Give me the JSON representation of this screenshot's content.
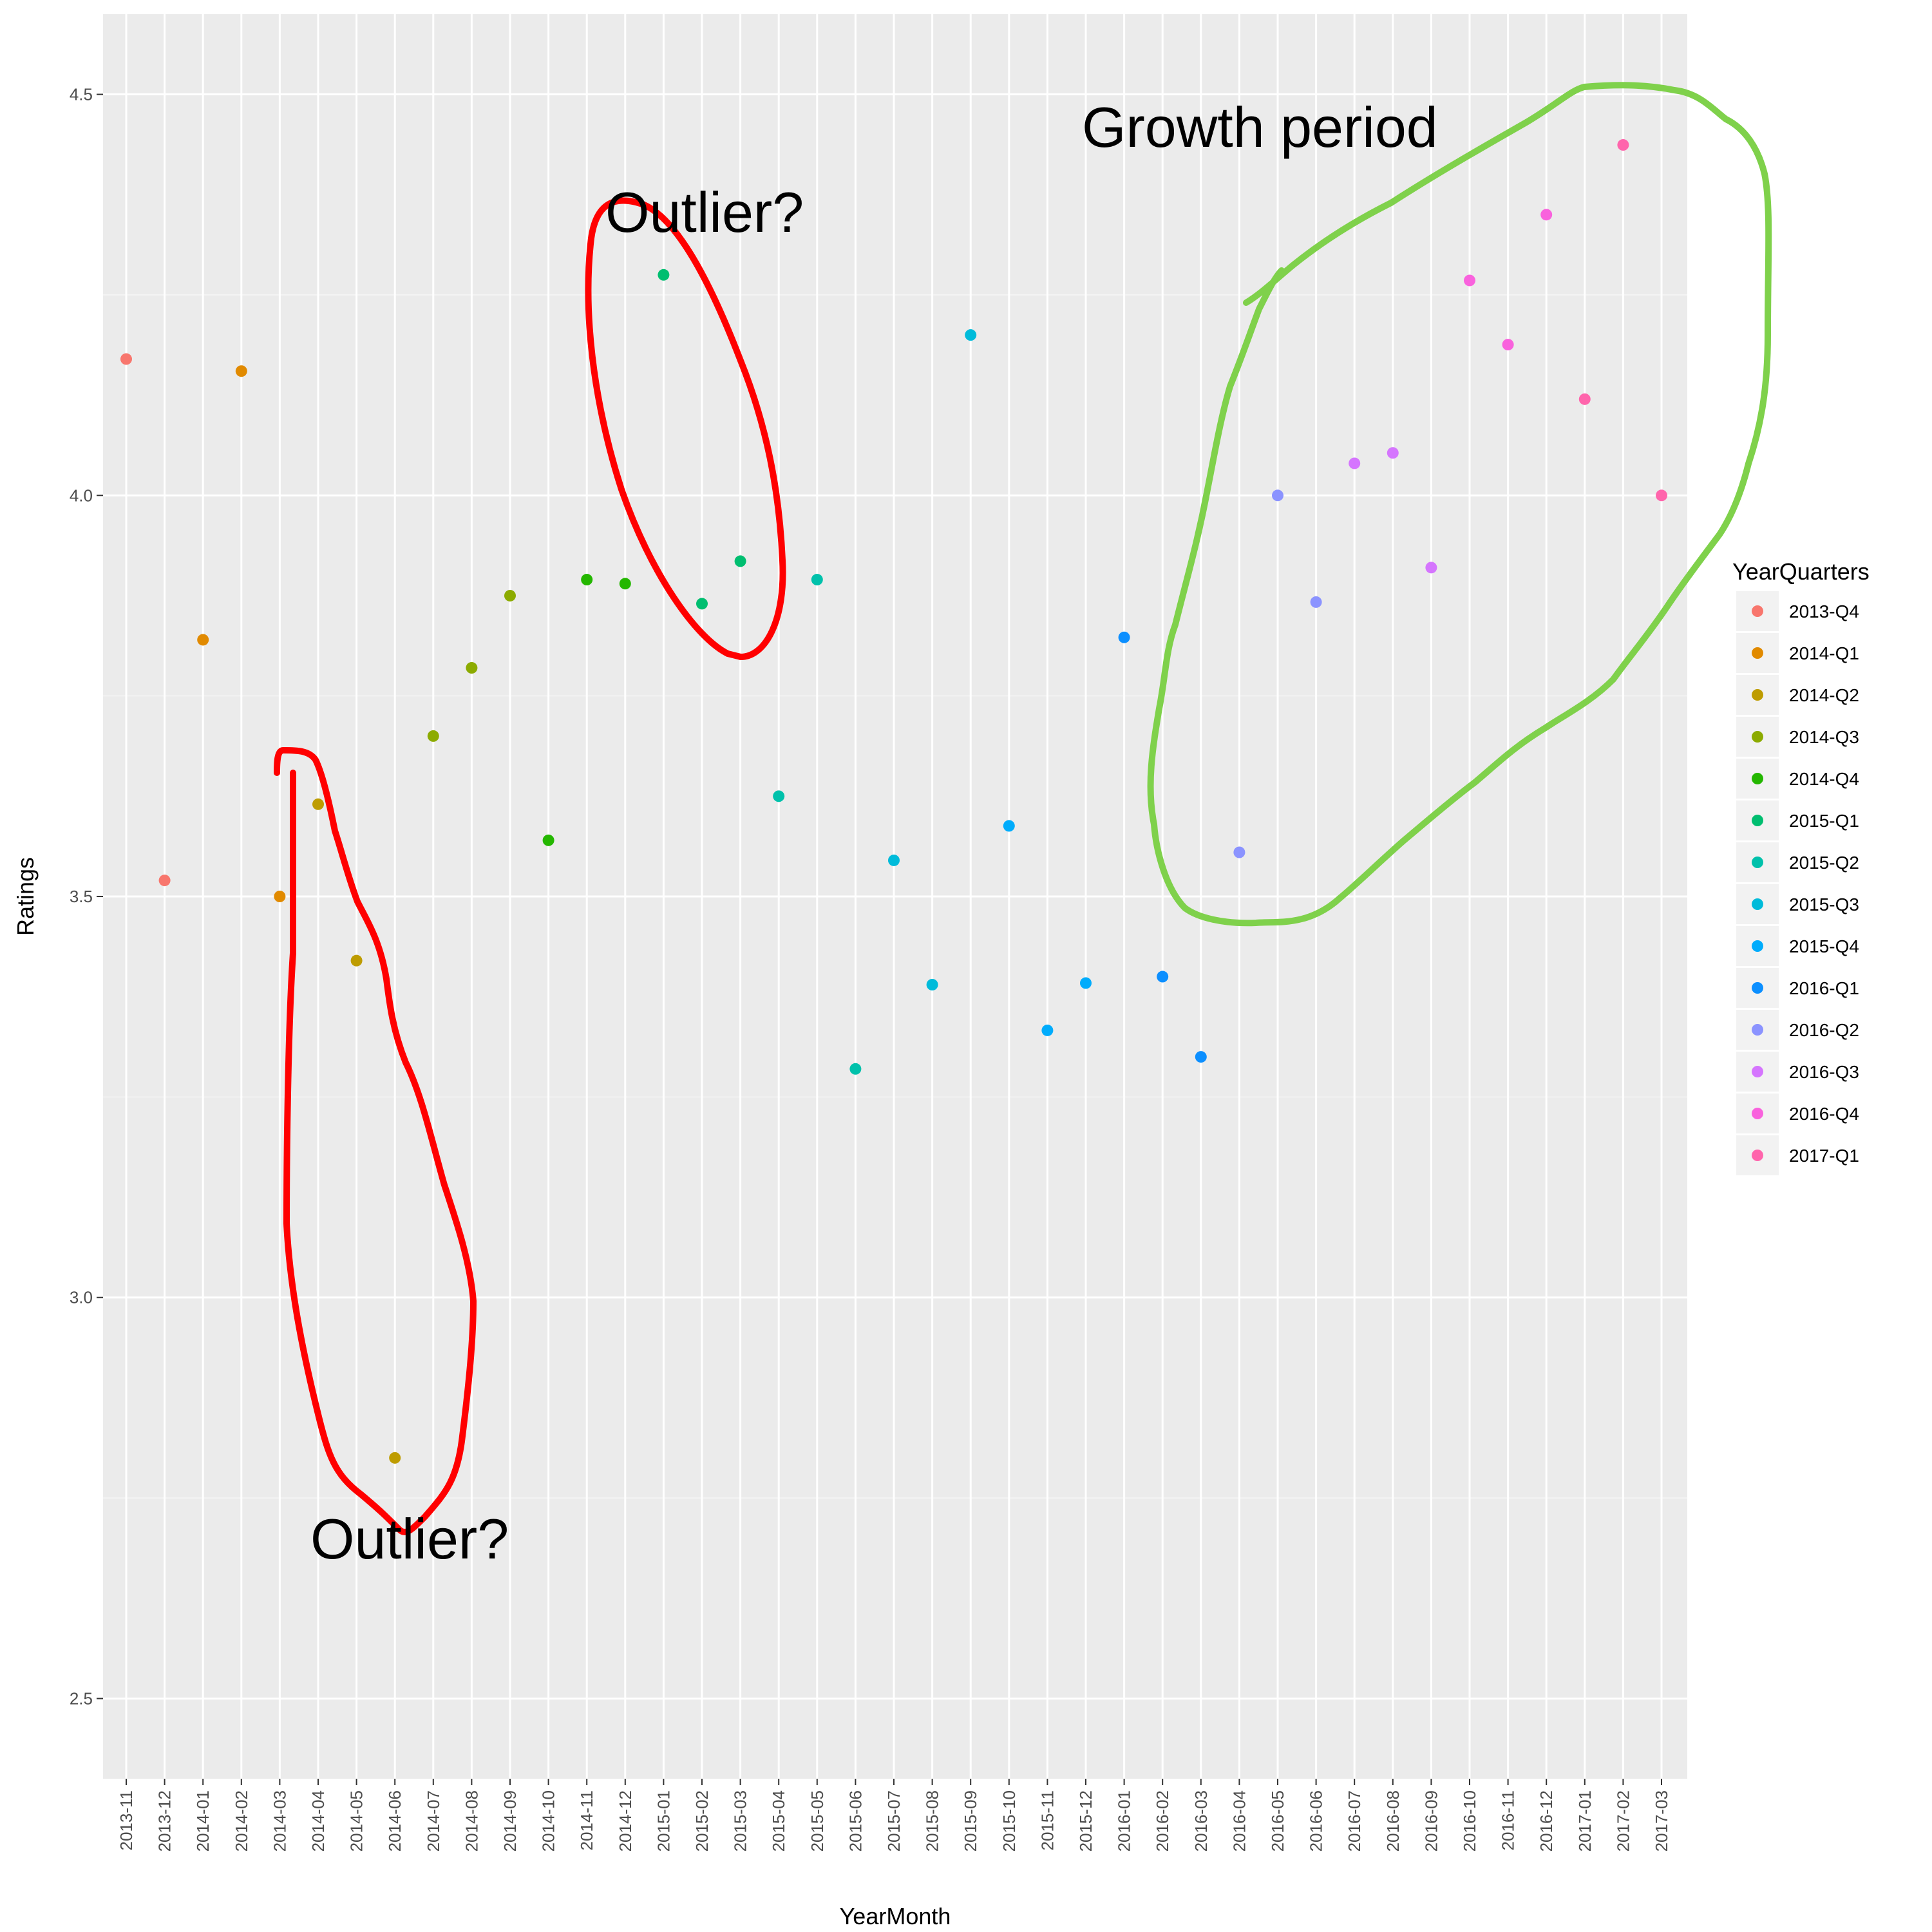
{
  "chart_data": {
    "type": "scatter",
    "xlabel": "YearMonth",
    "ylabel": "Ratings",
    "ylim": [
      2.4,
      4.6
    ],
    "yticks": [
      "2.5",
      "3.0",
      "3.5",
      "4.0",
      "4.5"
    ],
    "grid": true,
    "legend_title": "YearQuarters",
    "legend_position": "right",
    "categories": [
      "2013-11",
      "2013-12",
      "2014-01",
      "2014-02",
      "2014-03",
      "2014-04",
      "2014-05",
      "2014-06",
      "2014-07",
      "2014-08",
      "2014-09",
      "2014-10",
      "2014-11",
      "2014-12",
      "2015-01",
      "2015-02",
      "2015-03",
      "2015-04",
      "2015-05",
      "2015-06",
      "2015-07",
      "2015-08",
      "2015-09",
      "2015-10",
      "2015-11",
      "2015-12",
      "2016-01",
      "2016-02",
      "2016-03",
      "2016-04",
      "2016-05",
      "2016-06",
      "2016-07",
      "2016-08",
      "2016-09",
      "2016-10",
      "2016-11",
      "2016-12",
      "2017-01",
      "2017-02",
      "2017-03"
    ],
    "series": [
      {
        "name": "2013-Q4",
        "color": "#F8766D",
        "points": [
          {
            "x": "2013-11",
            "y": 4.17
          },
          {
            "x": "2013-12",
            "y": 3.52
          }
        ]
      },
      {
        "name": "2014-Q1",
        "color": "#E18A00",
        "points": [
          {
            "x": "2014-01",
            "y": 3.82
          },
          {
            "x": "2014-02",
            "y": 4.155
          },
          {
            "x": "2014-03",
            "y": 3.5
          }
        ]
      },
      {
        "name": "2014-Q2",
        "color": "#BE9C00",
        "points": [
          {
            "x": "2014-04",
            "y": 3.615
          },
          {
            "x": "2014-05",
            "y": 3.42
          },
          {
            "x": "2014-06",
            "y": 2.8
          }
        ]
      },
      {
        "name": "2014-Q3",
        "color": "#8CAB00",
        "points": [
          {
            "x": "2014-07",
            "y": 3.7
          },
          {
            "x": "2014-08",
            "y": 3.785
          },
          {
            "x": "2014-09",
            "y": 3.875
          }
        ]
      },
      {
        "name": "2014-Q4",
        "color": "#24B700",
        "points": [
          {
            "x": "2014-10",
            "y": 3.57
          },
          {
            "x": "2014-11",
            "y": 3.895
          },
          {
            "x": "2014-12",
            "y": 3.89
          }
        ]
      },
      {
        "name": "2015-Q1",
        "color": "#00BE70",
        "points": [
          {
            "x": "2015-01",
            "y": 4.275
          },
          {
            "x": "2015-02",
            "y": 3.865
          },
          {
            "x": "2015-03",
            "y": 3.918
          }
        ]
      },
      {
        "name": "2015-Q2",
        "color": "#00C1AB",
        "points": [
          {
            "x": "2015-04",
            "y": 3.625
          },
          {
            "x": "2015-05",
            "y": 3.895
          },
          {
            "x": "2015-06",
            "y": 3.285
          }
        ]
      },
      {
        "name": "2015-Q3",
        "color": "#00BBDA",
        "points": [
          {
            "x": "2015-07",
            "y": 3.545
          },
          {
            "x": "2015-08",
            "y": 3.39
          },
          {
            "x": "2015-09",
            "y": 4.2
          }
        ]
      },
      {
        "name": "2015-Q4",
        "color": "#00ACFC",
        "points": [
          {
            "x": "2015-10",
            "y": 3.588
          },
          {
            "x": "2015-11",
            "y": 3.333
          },
          {
            "x": "2015-12",
            "y": 3.392
          }
        ]
      },
      {
        "name": "2016-Q1",
        "color": "#0C8FFF",
        "points": [
          {
            "x": "2016-01",
            "y": 3.823
          },
          {
            "x": "2016-02",
            "y": 3.4
          },
          {
            "x": "2016-03",
            "y": 3.3
          }
        ]
      },
      {
        "name": "2016-Q2",
        "color": "#8B93FF",
        "points": [
          {
            "x": "2016-04",
            "y": 3.555
          },
          {
            "x": "2016-05",
            "y": 4.0
          },
          {
            "x": "2016-06",
            "y": 3.867
          }
        ]
      },
      {
        "name": "2016-Q3",
        "color": "#D575FE",
        "points": [
          {
            "x": "2016-07",
            "y": 4.04
          },
          {
            "x": "2016-08",
            "y": 4.053
          },
          {
            "x": "2016-09",
            "y": 3.91
          }
        ]
      },
      {
        "name": "2016-Q4",
        "color": "#F962DD",
        "points": [
          {
            "x": "2016-10",
            "y": 4.268
          },
          {
            "x": "2016-11",
            "y": 4.188
          },
          {
            "x": "2016-12",
            "y": 4.35
          }
        ]
      },
      {
        "name": "2017-Q1",
        "color": "#FF65AC",
        "points": [
          {
            "x": "2017-01",
            "y": 4.12
          },
          {
            "x": "2017-02",
            "y": 4.437
          },
          {
            "x": "2017-03",
            "y": 4.0
          }
        ]
      }
    ],
    "annotations": [
      {
        "text": "Outlier?",
        "color": "#FF0000"
      },
      {
        "text": "Outlier?",
        "color": "#FF0000"
      },
      {
        "text": "Growth period",
        "color": "#7FD14B"
      }
    ]
  }
}
